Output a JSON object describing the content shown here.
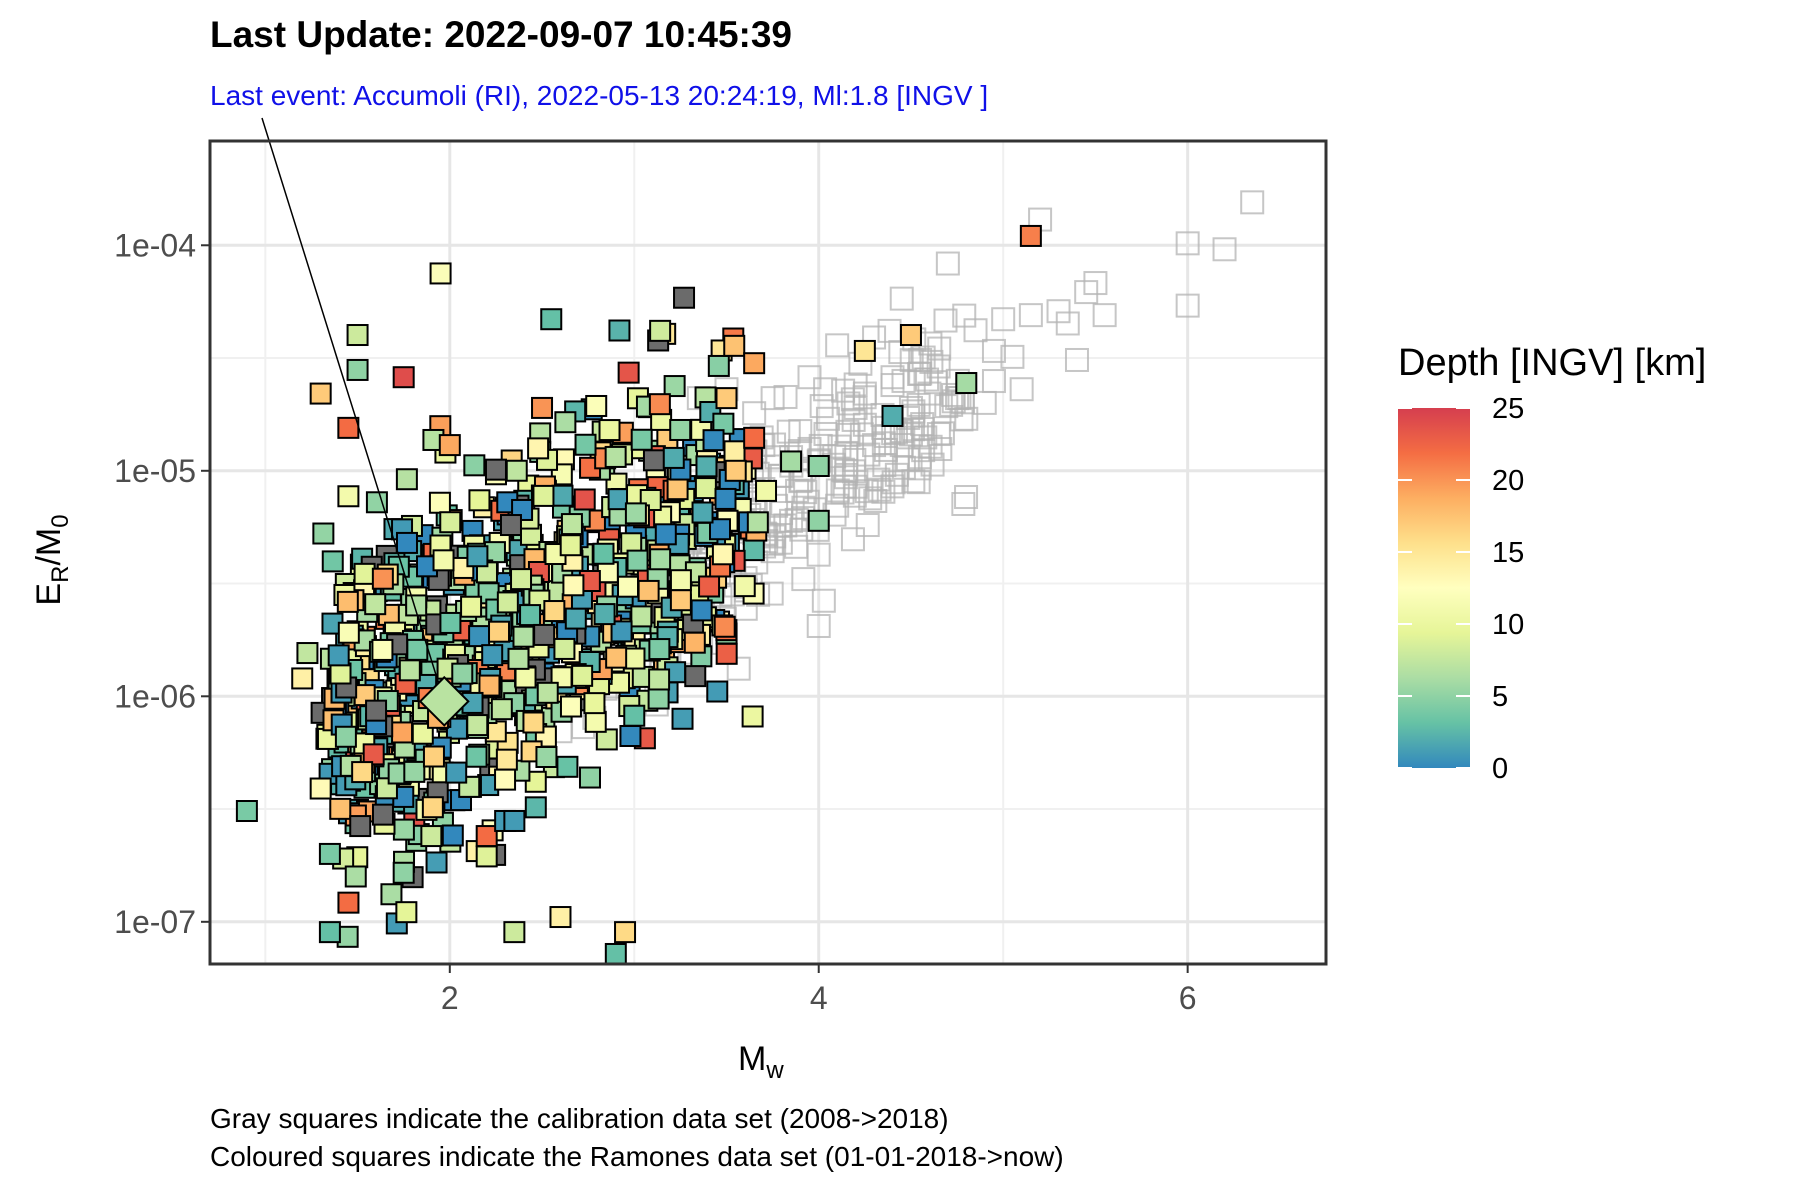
{
  "header": {
    "title": "Last Update:  2022-09-07 10:45:39",
    "subtitle": "Last event: Accumoli (RI),  2022-05-13 20:24:19, Ml:1.8 [INGV ]"
  },
  "footer": {
    "line1": "Gray squares indicate the calibration data set (2008->2018)",
    "line2": "Coloured squares indicate the Ramones data set (01-01-2018->now)"
  },
  "chart_data": {
    "type": "scatter",
    "xlabel": {
      "base": "M",
      "sub": "w"
    },
    "ylabel": {
      "part1": "E",
      "sub1": "R",
      "part2": "/M",
      "sub2": "0"
    },
    "x_scale": "linear",
    "y_scale": "log10",
    "xlim": [
      0.7,
      6.75
    ],
    "ylim": [
      6.5e-08,
      0.00029
    ],
    "x_ticks": [
      2,
      4,
      6
    ],
    "x_tick_labels": [
      "2",
      "4",
      "6"
    ],
    "y_ticks": [
      1e-07,
      1e-06,
      1e-05,
      0.0001
    ],
    "y_tick_labels": [
      "1e-07",
      "1e-06",
      "1e-05",
      "1e-04"
    ],
    "grid": true,
    "legend": {
      "title": "Depth [INGV] [km]",
      "placement": "right",
      "range": [
        0,
        25
      ],
      "ticks": [
        0,
        5,
        10,
        15,
        20,
        25
      ],
      "tick_labels": [
        "0",
        "5",
        "10",
        "15",
        "20",
        "25"
      ],
      "colors": [
        "#3288bd",
        "#66c2a5",
        "#abdda4",
        "#e6f598",
        "#ffffbf",
        "#fee08b",
        "#fdae61",
        "#f46d43",
        "#d53e4f"
      ]
    },
    "calibration_color": "#b3b3b3",
    "calibration_series": [
      [
        6.35,
        0.000155
      ],
      [
        5.2,
        0.00013
      ],
      [
        6.0,
        0.000102
      ],
      [
        6.2,
        9.6e-05
      ],
      [
        4.7,
        8.3e-05
      ],
      [
        5.5,
        6.8e-05
      ],
      [
        5.45,
        6.2e-05
      ],
      [
        4.45,
        5.8e-05
      ],
      [
        5.3,
        5.1e-05
      ],
      [
        5.55,
        4.9e-05
      ],
      [
        6.0,
        5.4e-05
      ],
      [
        5.15,
        4.9e-05
      ],
      [
        5.0,
        4.7e-05
      ],
      [
        5.35,
        4.5e-05
      ],
      [
        4.85,
        4.2e-05
      ],
      [
        4.3,
        3.9e-05
      ],
      [
        4.1,
        3.6e-05
      ],
      [
        4.95,
        3.4e-05
      ],
      [
        4.55,
        3.1e-05
      ],
      [
        5.4,
        3.1e-05
      ],
      [
        5.1,
        2.3e-05
      ],
      [
        4.65,
        2.9e-05
      ],
      [
        4.4,
        2.6e-05
      ],
      [
        4.9,
        2e-05
      ],
      [
        4.8,
        1.7e-05
      ],
      [
        4.5,
        1.45e-05
      ],
      [
        4.3,
        1.3e-05
      ],
      [
        4.15,
        1.2e-05
      ],
      [
        4.0,
        1.1e-05
      ],
      [
        3.8,
        9.5e-06
      ],
      [
        3.7,
        8.3e-06
      ],
      [
        3.6,
        7.5e-06
      ],
      [
        3.5,
        6.6e-06
      ],
      [
        3.4,
        5.7e-06
      ],
      [
        3.3,
        4.8e-06
      ],
      [
        3.2,
        4e-06
      ],
      [
        3.1,
        3.4e-06
      ],
      [
        3.0,
        2.9e-06
      ],
      [
        2.9,
        2.4e-06
      ],
      [
        2.8,
        2e-06
      ],
      [
        4.4,
        2.4e-05
      ],
      [
        4.25,
        2.2e-05
      ],
      [
        4.6,
        2.2e-05
      ],
      [
        4.2,
        1.9e-05
      ],
      [
        4.05,
        1.7e-05
      ],
      [
        3.9,
        1.5e-05
      ],
      [
        4.5,
        1.9e-05
      ],
      [
        3.95,
        1.25e-05
      ],
      [
        4.35,
        1.55e-05
      ],
      [
        3.85,
        1.15e-05
      ],
      [
        4.2,
        8.5e-06
      ],
      [
        4.1,
        7e-06
      ],
      [
        3.85,
        6e-06
      ],
      [
        3.65,
        5.3e-06
      ],
      [
        3.45,
        4.5e-06
      ],
      [
        3.25,
        3.6e-06
      ],
      [
        3.05,
        2.6e-06
      ],
      [
        2.85,
        1.8e-06
      ],
      [
        2.65,
        1.4e-06
      ],
      [
        2.55,
        1.15e-06
      ],
      [
        3.75,
        2.1e-05
      ],
      [
        3.5,
        2.3e-05
      ],
      [
        3.95,
        2.6e-05
      ],
      [
        3.65,
        1.8e-05
      ],
      [
        3.35,
        2.1e-05
      ],
      [
        4.0,
        2.05e-06
      ],
      [
        3.15,
        1.7e-06
      ],
      [
        2.75,
        1.3e-06
      ],
      [
        2.45,
        1e-06
      ],
      [
        3.35,
        2.4e-06
      ],
      [
        3.55,
        3.1e-06
      ],
      [
        3.75,
        4.4e-06
      ],
      [
        3.0,
        1.05e-06
      ],
      [
        2.6,
        7e-07
      ],
      [
        3.9,
        9e-06
      ],
      [
        4.45,
        1.5e-05
      ],
      [
        4.15,
        1e-05
      ],
      [
        3.7,
        1.3e-05
      ],
      [
        3.55,
        1.1e-05
      ],
      [
        3.4,
        9e-06
      ],
      [
        5.05,
        3.2e-05
      ],
      [
        4.75,
        2.1e-05
      ],
      [
        4.95,
        2.5e-05
      ],
      [
        4.55,
        2.7e-05
      ],
      [
        4.25,
        1.6e-05
      ]
    ],
    "ramones_series_summary": "Coloured squares: Ramones events, Mw approx 0.9-5.2, colour encodes depth (km)",
    "highlighted_event": {
      "mw": 1.97,
      "ratio": 9.5e-07,
      "depth": 7
    },
    "ramones_outliers": [
      [
        0.9,
        3.1e-07,
        4
      ],
      [
        1.95,
        7.5e-05,
        12
      ],
      [
        2.55,
        4.7e-05,
        3
      ],
      [
        1.5,
        4e-05,
        8
      ],
      [
        1.5,
        2.8e-05,
        5
      ],
      [
        1.75,
        2.6e-05,
        24
      ],
      [
        1.3,
        2.2e-05,
        17
      ],
      [
        1.45,
        1.55e-05,
        22
      ],
      [
        1.2,
        1.2e-06,
        14
      ],
      [
        1.3,
        3.9e-07,
        13
      ],
      [
        1.35,
        2e-07,
        4
      ],
      [
        1.35,
        9e-08,
        3
      ],
      [
        1.75,
        1.65e-07,
        5
      ],
      [
        2.35,
        9e-08,
        8
      ],
      [
        2.6,
        1.05e-07,
        14
      ],
      [
        2.95,
        9e-08,
        16
      ],
      [
        2.9,
        7.2e-08,
        3
      ],
      [
        2.75,
        4.2e-08,
        14
      ],
      [
        2.8,
        4.6e-08,
        14
      ],
      [
        2.2,
        2.4e-07,
        22
      ],
      [
        2.2,
        1.95e-07,
        9
      ],
      [
        2.3,
        2.8e-07,
        1
      ],
      [
        2.35,
        2.8e-07,
        1
      ],
      [
        1.9,
        2.4e-07,
        8
      ],
      [
        3.45,
        1.05e-06,
        1
      ],
      [
        3.0,
        8.2e-07,
        3
      ],
      [
        3.65,
        3e-05,
        19
      ],
      [
        5.15,
        0.00011,
        21
      ],
      [
        4.5,
        4e-05,
        17
      ],
      [
        4.25,
        3.4e-05,
        15
      ],
      [
        4.8,
        2.45e-05,
        6
      ],
      [
        4.4,
        1.75e-05,
        2
      ],
      [
        4.0,
        6e-06,
        5
      ],
      [
        4.0,
        1.05e-05,
        5
      ],
      [
        3.85,
        1.1e-05,
        6
      ],
      [
        3.65,
        1.4e-05,
        22
      ],
      [
        3.5,
        2.1e-05,
        17
      ],
      [
        3.55,
        1e-05,
        17
      ],
      [
        2.5,
        1.9e-05,
        20
      ],
      [
        2.0,
        1.3e-05,
        19
      ]
    ]
  }
}
